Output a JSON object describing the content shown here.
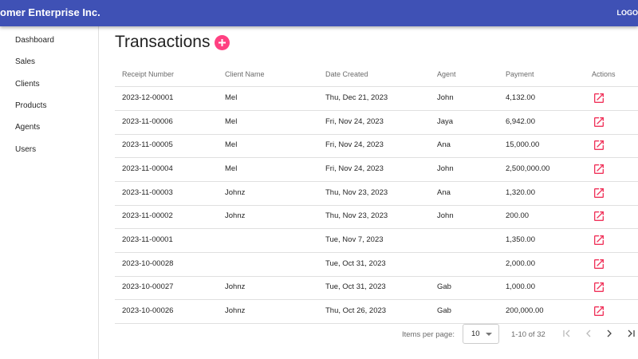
{
  "app": {
    "title": "omer Enterprise Inc.",
    "logo": "LOGO"
  },
  "sidebar": {
    "items": [
      "Dashboard",
      "Sales",
      "Clients",
      "Products",
      "Agents",
      "Users"
    ]
  },
  "page": {
    "title": "Transactions"
  },
  "table": {
    "columns": [
      "Receipt Number",
      "Client Name",
      "Date Created",
      "Agent",
      "Payment",
      "Actions"
    ],
    "rows": [
      [
        "2023-12-00001",
        "Mel",
        "Thu, Dec 21, 2023",
        "John",
        "4,132.00"
      ],
      [
        "2023-11-00006",
        "Mel",
        "Fri, Nov 24, 2023",
        "Jaya",
        "6,942.00"
      ],
      [
        "2023-11-00005",
        "Mel",
        "Fri, Nov 24, 2023",
        "Ana",
        "15,000.00"
      ],
      [
        "2023-11-00004",
        "Mel",
        "Fri, Nov 24, 2023",
        "John",
        "2,500,000.00"
      ],
      [
        "2023-11-00003",
        "Johnz",
        "Thu, Nov 23, 2023",
        "Ana",
        "1,320.00"
      ],
      [
        "2023-11-00002",
        "Johnz",
        "Thu, Nov 23, 2023",
        "John",
        "200.00"
      ],
      [
        "2023-11-00001",
        null,
        "Tue, Nov 7, 2023",
        null,
        "1,350.00"
      ],
      [
        "2023-10-00028",
        null,
        "Tue, Oct 31, 2023",
        null,
        "2,000.00"
      ],
      [
        "2023-10-00027",
        "Johnz",
        "Tue, Oct 31, 2023",
        "Gab",
        "1,000.00"
      ],
      [
        "2023-10-00026",
        "Johnz",
        "Thu, Oct 26, 2023",
        "Gab",
        "200,000.00"
      ]
    ]
  },
  "paginator": {
    "items_per_page_label": "Items per page:",
    "page_size": "10",
    "range": "1-10 of 32"
  }
}
